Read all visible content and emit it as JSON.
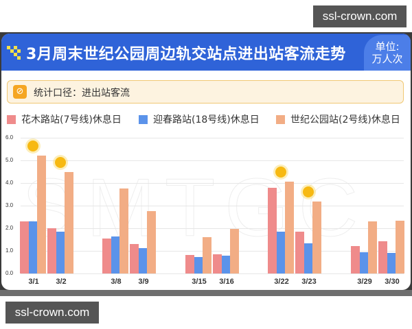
{
  "watermark_top": "ssl-crown.com",
  "watermark_bottom": "ssl-crown.com",
  "header": {
    "title": "3月周末世纪公园周边轨交站点进出站客流走势",
    "unit_line1": "单位:",
    "unit_line2": "万人次",
    "icon": "pixel-block-icon"
  },
  "note": {
    "icon": "link-icon",
    "text": "统计口径：进出站客流"
  },
  "legend": [
    {
      "label": "花木路站(7号线)休息日",
      "color": "#ef8b8b"
    },
    {
      "label": "迎春路站(18号线)休息日",
      "color": "#5b93ea"
    },
    {
      "label": "世纪公园站(2号线)休息日",
      "color": "#f2ad85"
    }
  ],
  "background_watermark": "SMTGC",
  "chart_data": {
    "type": "bar",
    "title": "3月周末世纪公园周边轨交站点进出站客流走势",
    "xlabel": "",
    "ylabel": "万人次",
    "ylim": [
      0,
      6
    ],
    "yticks": [
      "0.0",
      "1.0",
      "2.0",
      "3.0",
      "4.0",
      "5.0",
      "6.0"
    ],
    "grid": true,
    "legend_position": "top",
    "categories": [
      "3/1",
      "3/2",
      "3/8",
      "3/9",
      "3/15",
      "3/16",
      "3/22",
      "3/23",
      "3/29",
      "3/30"
    ],
    "series": [
      {
        "name": "花木路站(7号线)休息日",
        "color": "#ef8b8b",
        "values": [
          2.3,
          2.0,
          1.55,
          1.3,
          0.82,
          0.85,
          3.8,
          1.85,
          1.2,
          1.42
        ]
      },
      {
        "name": "迎春路站(18号线)休息日",
        "color": "#5b93ea",
        "values": [
          2.3,
          1.85,
          1.65,
          1.12,
          0.72,
          0.78,
          1.85,
          1.33,
          0.95,
          0.9
        ]
      },
      {
        "name": "世纪公园站(2号线)休息日",
        "color": "#f2ad85",
        "values": [
          5.2,
          4.5,
          3.75,
          2.75,
          1.6,
          1.98,
          4.05,
          3.18,
          2.3,
          2.33
        ]
      }
    ],
    "annotations": [
      {
        "category": "3/1",
        "icon": "sun-icon"
      },
      {
        "category": "3/2",
        "icon": "sun-icon"
      },
      {
        "category": "3/22",
        "icon": "sun-icon"
      },
      {
        "category": "3/23",
        "icon": "sun-icon"
      }
    ]
  }
}
